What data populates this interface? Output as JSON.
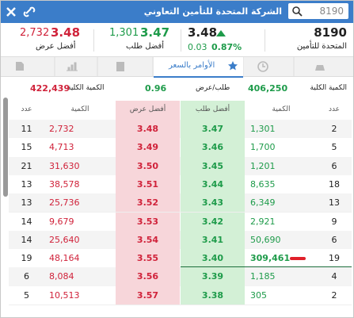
{
  "header": {
    "title": "الشركة المتحدة للتأمين التعاوني",
    "search": "8190"
  },
  "quote": {
    "best_ask": {
      "qty": "2,732",
      "price": "3.48",
      "label": "أفضل عرض"
    },
    "best_bid": {
      "qty": "1,301",
      "price": "3.47",
      "label": "أفضل طلب"
    },
    "last": {
      "price": "3.48",
      "change": "0.03",
      "change_pct": "0.87%"
    },
    "symbol": "8190",
    "name": "المتحدة للتأمين"
  },
  "tabs": {
    "active": "الأوامر بالسعر"
  },
  "summary": {
    "bid_total_label": "الكمية الكلية",
    "bid_total": "406,250",
    "ratio_label": "طلب/عرض",
    "ratio": "0.96",
    "ask_total_label": "الكمية الكلية",
    "ask_total": "422,439"
  },
  "table": {
    "columns": [
      "عدد",
      "الكمية",
      "أفضل عرض",
      "أفضل طلب",
      "الكمية",
      "عدد"
    ],
    "rows": [
      [
        "11",
        "2,732",
        "3.48",
        "3.47",
        "1,301",
        "2"
      ],
      [
        "15",
        "4,713",
        "3.49",
        "3.46",
        "1,700",
        "5"
      ],
      [
        "21",
        "31,630",
        "3.50",
        "3.45",
        "1,201",
        "6"
      ],
      [
        "13",
        "38,578",
        "3.51",
        "3.44",
        "8,635",
        "18"
      ],
      [
        "13",
        "25,736",
        "3.52",
        "3.43",
        "6,349",
        "13"
      ],
      [
        "14",
        "9,679",
        "3.53",
        "3.42",
        "2,921",
        "9"
      ],
      [
        "14",
        "25,640",
        "3.54",
        "3.41",
        "50,690",
        "6"
      ],
      [
        "19",
        "48,164",
        "3.55",
        "3.40",
        "309,461",
        "19"
      ],
      [
        "6",
        "8,084",
        "3.56",
        "3.39",
        "1,185",
        "4"
      ],
      [
        "5",
        "10,513",
        "3.57",
        "3.38",
        "305",
        "2"
      ]
    ]
  }
}
